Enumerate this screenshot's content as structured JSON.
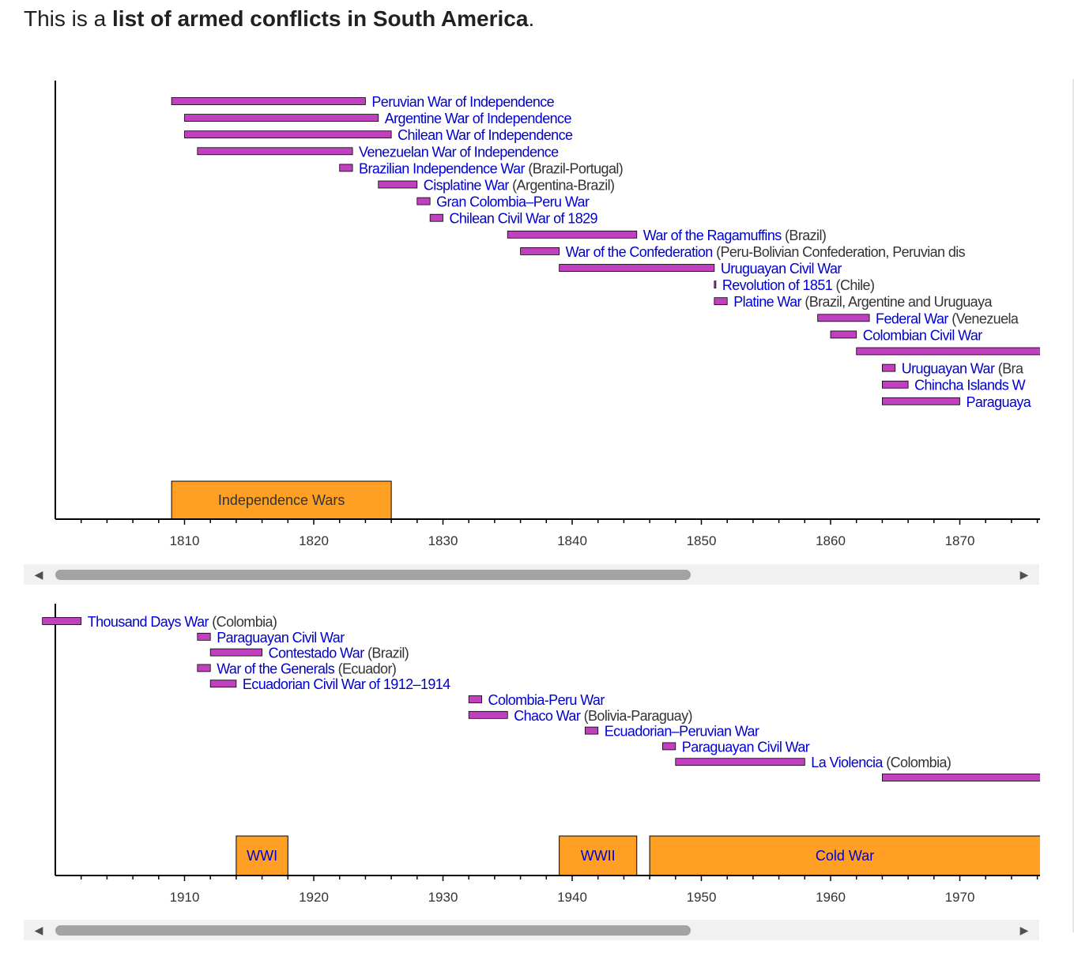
{
  "intro": {
    "prefix": "This is a ",
    "bold": "list of armed conflicts in South America",
    "suffix": "."
  },
  "colors": {
    "bar": "#c040c0",
    "era": "#ffa024",
    "link": "#0000cc",
    "note": "#333333",
    "axis": "#000000"
  },
  "timelines": [
    {
      "id": "timeline-1800s",
      "chart_data": {
        "type": "timeline",
        "xlim": [
          1800,
          1876.2
        ],
        "ticks": [
          1810,
          1820,
          1830,
          1840,
          1850,
          1860,
          1870
        ],
        "eras": [
          {
            "label": "Independence Wars",
            "start": 1809,
            "end": 1826
          }
        ],
        "wars": [
          {
            "name": "Peruvian War of Independence",
            "note": "",
            "start": 1809,
            "end": 1824
          },
          {
            "name": "Argentine War of Independence",
            "note": "",
            "start": 1810,
            "end": 1825
          },
          {
            "name": "Chilean War of Independence",
            "note": "",
            "start": 1810,
            "end": 1826
          },
          {
            "name": "Venezuelan War of Independence",
            "note": "",
            "start": 1811,
            "end": 1823
          },
          {
            "name": "Brazilian Independence War",
            "note": "(Brazil-Portugal)",
            "start": 1822,
            "end": 1823
          },
          {
            "name": "Cisplatine War",
            "note": "(Argentina-Brazil)",
            "start": 1825,
            "end": 1828
          },
          {
            "name": "Gran Colombia–Peru War",
            "note": "",
            "start": 1828,
            "end": 1829
          },
          {
            "name": "Chilean Civil War of 1829",
            "note": "",
            "start": 1829,
            "end": 1830
          },
          {
            "name": "War of the Ragamuffins",
            "note": "(Brazil)",
            "start": 1835,
            "end": 1845
          },
          {
            "name": "War of the Confederation",
            "note": "(Peru-Bolivian Confederation, Peruvian dis",
            "start": 1836,
            "end": 1839
          },
          {
            "name": "Uruguayan Civil War",
            "note": "",
            "start": 1839,
            "end": 1851
          },
          {
            "name": "Revolution of 1851",
            "note": "(Chile)",
            "start": 1851,
            "end": 1851
          },
          {
            "name": "Platine War",
            "note": "(Brazil, Argentine and Uruguaya",
            "start": 1851,
            "end": 1852
          },
          {
            "name": "Federal War",
            "note": "(Venezuela",
            "start": 1859,
            "end": 1863
          },
          {
            "name": "Colombian Civil War",
            "note": "",
            "start": 1860,
            "end": 1862
          },
          {
            "name": "",
            "note": "",
            "start": 1862,
            "end": 1880
          },
          {
            "name": "Uruguayan War",
            "note": "(Bra",
            "start": 1864,
            "end": 1865
          },
          {
            "name": "Chincha Islands W",
            "note": "",
            "start": 1864,
            "end": 1866
          },
          {
            "name": "Paraguaya",
            "note": "",
            "start": 1864,
            "end": 1870
          }
        ]
      },
      "scrollbar": {
        "left_arrow": "◀",
        "right_arrow": "▶"
      }
    },
    {
      "id": "timeline-1900s",
      "chart_data": {
        "type": "timeline",
        "xlim": [
          1900,
          1976.2
        ],
        "ticks": [
          1910,
          1920,
          1930,
          1940,
          1950,
          1960,
          1970
        ],
        "eras": [
          {
            "label": "WWI",
            "start": 1914,
            "end": 1918
          },
          {
            "label": "WWII",
            "start": 1939,
            "end": 1945
          },
          {
            "label": "Cold War",
            "start": 1946,
            "end": 1991
          }
        ],
        "wars": [
          {
            "name": "Thousand Days War",
            "note": "(Colombia)",
            "start": 1899,
            "end": 1902
          },
          {
            "name": "Paraguayan Civil War",
            "note": "",
            "start": 1911,
            "end": 1912
          },
          {
            "name": "Contestado War",
            "note": "(Brazil)",
            "start": 1912,
            "end": 1916
          },
          {
            "name": "War of the Generals",
            "note": "(Ecuador)",
            "start": 1911,
            "end": 1912
          },
          {
            "name": "Ecuadorian Civil War of 1912–1914",
            "note": "",
            "start": 1912,
            "end": 1914
          },
          {
            "name": "Colombia-Peru War",
            "note": "",
            "start": 1932,
            "end": 1933
          },
          {
            "name": "Chaco War",
            "note": "(Bolivia-Paraguay)",
            "start": 1932,
            "end": 1935
          },
          {
            "name": "Ecuadorian–Peruvian War",
            "note": "",
            "start": 1941,
            "end": 1942
          },
          {
            "name": "Paraguayan Civil War",
            "note": "",
            "start": 1947,
            "end": 1948
          },
          {
            "name": "La Violencia",
            "note": "(Colombia)",
            "start": 1948,
            "end": 1958
          },
          {
            "name": "",
            "note": "",
            "start": 1964,
            "end": 1990
          }
        ]
      },
      "scrollbar": {
        "left_arrow": "◀",
        "right_arrow": "▶"
      }
    }
  ]
}
